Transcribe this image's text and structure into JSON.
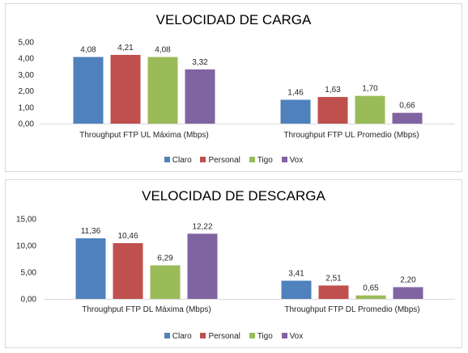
{
  "chart_data": [
    {
      "type": "bar",
      "title": "VELOCIDAD DE CARGA",
      "categories": [
        "Throughput FTP UL Máxima (Mbps)",
        "Throughput FTP UL Promedio (Mbps)"
      ],
      "series": [
        {
          "name": "Claro",
          "values": [
            4.08,
            1.46
          ],
          "labels": [
            "4,08",
            "1,46"
          ],
          "color": "#4f81bd"
        },
        {
          "name": "Personal",
          "values": [
            4.21,
            1.63
          ],
          "labels": [
            "4,21",
            "1,63"
          ],
          "color": "#c0504d"
        },
        {
          "name": "Tigo",
          "values": [
            4.08,
            1.7
          ],
          "labels": [
            "4,08",
            "1,70"
          ],
          "color": "#9bbb59"
        },
        {
          "name": "Vox",
          "values": [
            3.32,
            0.66
          ],
          "labels": [
            "3,32",
            "0,66"
          ],
          "color": "#8064a2"
        }
      ],
      "ylim": [
        0,
        5
      ],
      "yticks": [
        "0,00",
        "1,00",
        "2,00",
        "3,00",
        "4,00",
        "5,00"
      ],
      "grid": false,
      "legend": "bottom"
    },
    {
      "type": "bar",
      "title": "VELOCIDAD DE DESCARGA",
      "categories": [
        "Throughput FTP DL Máxima (Mbps)",
        "Throughput FTP DL Promedio (Mbps)"
      ],
      "series": [
        {
          "name": "Claro",
          "values": [
            11.36,
            3.41
          ],
          "labels": [
            "11,36",
            "3,41"
          ],
          "color": "#4f81bd"
        },
        {
          "name": "Personal",
          "values": [
            10.46,
            2.51
          ],
          "labels": [
            "10,46",
            "2,51"
          ],
          "color": "#c0504d"
        },
        {
          "name": "Tigo",
          "values": [
            6.29,
            0.65
          ],
          "labels": [
            "6,29",
            "0,65"
          ],
          "color": "#9bbb59"
        },
        {
          "name": "Vox",
          "values": [
            12.22,
            2.2
          ],
          "labels": [
            "12,22",
            "2,20"
          ],
          "color": "#8064a2"
        }
      ],
      "ylim": [
        0,
        15
      ],
      "yticks": [
        "0,00",
        "5,00",
        "10,00",
        "15,00"
      ],
      "grid": false,
      "legend": "bottom"
    }
  ]
}
